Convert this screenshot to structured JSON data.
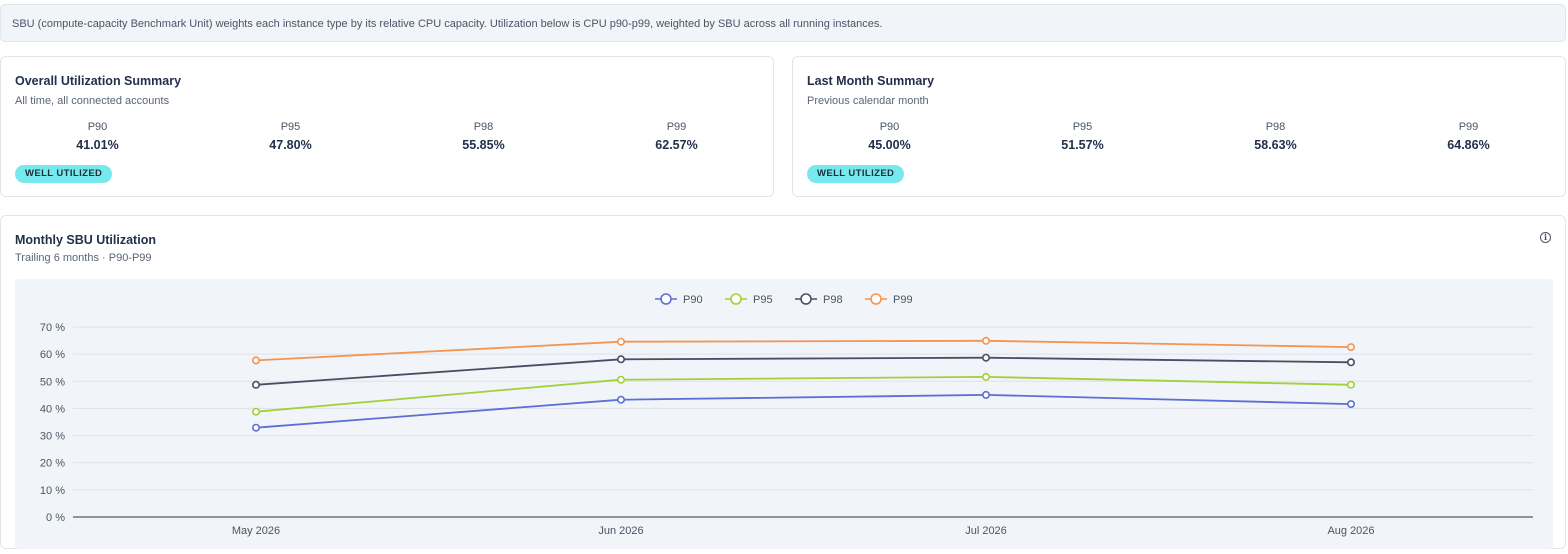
{
  "banner": {
    "text": "SBU (compute-capacity Benchmark Unit) weights each instance type by its relative CPU capacity. Utilization below is CPU p90-p99, weighted by SBU across all running instances."
  },
  "overall": {
    "title": "Overall Utilization Summary",
    "subtitle": "All time, all connected accounts",
    "metrics": [
      {
        "label": "P90",
        "value": "41.01%"
      },
      {
        "label": "P95",
        "value": "47.80%"
      },
      {
        "label": "P98",
        "value": "55.85%"
      },
      {
        "label": "P99",
        "value": "62.57%"
      }
    ],
    "badge": "WELL UTILIZED"
  },
  "last_month": {
    "title": "Last Month Summary",
    "subtitle": "Previous calendar month",
    "metrics": [
      {
        "label": "P90",
        "value": "45.00%"
      },
      {
        "label": "P95",
        "value": "51.57%"
      },
      {
        "label": "P98",
        "value": "58.63%"
      },
      {
        "label": "P99",
        "value": "64.86%"
      }
    ],
    "badge": "WELL UTILIZED"
  },
  "monthly": {
    "title": "Monthly SBU Utilization",
    "subtitle": "Trailing 6 months · P90-P99",
    "info_icon": "info-icon"
  },
  "chart_data": {
    "type": "line",
    "categories": [
      "May 2026",
      "Jun 2026",
      "Jul 2026",
      "Aug 2026"
    ],
    "y_ticks": [
      "0 %",
      "10 %",
      "20 %",
      "30 %",
      "40 %",
      "50 %",
      "60 %",
      "70 %"
    ],
    "ylim": [
      0,
      70
    ],
    "grid": true,
    "legend_position": "top-center",
    "series": [
      {
        "name": "P90",
        "color": "#5b6fd6",
        "values": [
          32.9,
          43.2,
          45.0,
          41.6
        ]
      },
      {
        "name": "P95",
        "color": "#a3cf3a",
        "values": [
          38.8,
          50.6,
          51.6,
          48.7
        ]
      },
      {
        "name": "P98",
        "color": "#4a4d64",
        "values": [
          48.7,
          58.1,
          58.7,
          57.0
        ]
      },
      {
        "name": "P99",
        "color": "#f6944f",
        "values": [
          57.7,
          64.6,
          64.9,
          62.6
        ]
      }
    ]
  }
}
